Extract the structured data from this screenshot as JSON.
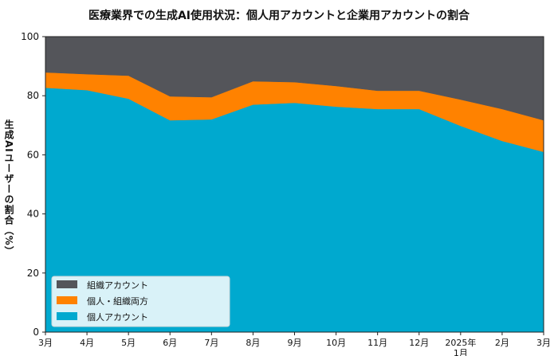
{
  "chart_data": {
    "type": "area",
    "stacked": true,
    "title": "医療業界での生成AI使用状況：個人用アカウントと企業用アカウントの割合",
    "xlabel": "",
    "ylabel": "生成AIユーザーの割合（%）",
    "categories": [
      "3月",
      "4月",
      "5月",
      "6月",
      "7月",
      "8月",
      "9月",
      "10月",
      "11月",
      "12月",
      "2025年\n1月",
      "2月",
      "3月"
    ],
    "ylim": [
      0,
      100
    ],
    "yticks": [
      0,
      20,
      40,
      60,
      80,
      100
    ],
    "grid": false,
    "legend_position": "bottom-left",
    "series": [
      {
        "name": "個人アカウント",
        "color": "#00A9CF",
        "values": [
          82.7,
          81.9,
          79.0,
          71.7,
          72.0,
          77.0,
          77.6,
          76.3,
          75.5,
          75.5,
          69.8,
          64.7,
          61.0
        ]
      },
      {
        "name": "個人・組織両方",
        "color": "#FF8200",
        "values": [
          5.2,
          5.4,
          7.8,
          8.1,
          7.5,
          7.9,
          7.0,
          7.0,
          6.2,
          6.2,
          8.9,
          10.8,
          10.7
        ]
      },
      {
        "name": "組織アカウント",
        "color": "#54555A",
        "values": [
          12.1,
          12.7,
          13.2,
          20.2,
          20.5,
          15.1,
          15.4,
          16.7,
          18.3,
          18.3,
          21.3,
          24.5,
          28.3
        ]
      }
    ]
  }
}
